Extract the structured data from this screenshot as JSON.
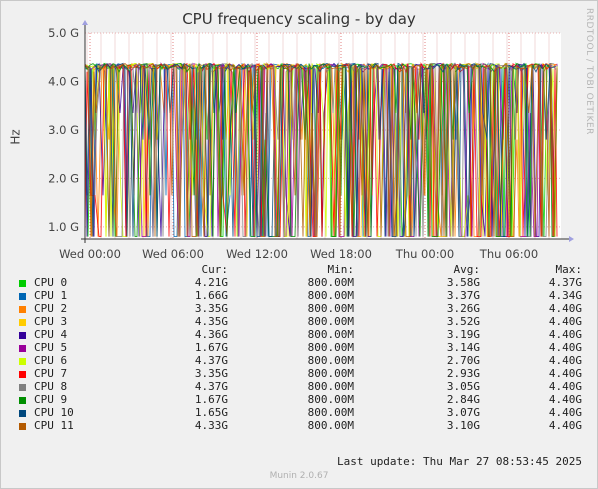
{
  "chart_data": {
    "type": "line",
    "title": "CPU frequency scaling - by day",
    "ylabel": "Hz",
    "ylim": [
      0.75,
      5.0
    ],
    "yticks": [
      "1.0 G",
      "2.0 G",
      "3.0 G",
      "4.0 G",
      "5.0 G"
    ],
    "ytick_values": [
      1.0,
      2.0,
      3.0,
      4.0,
      5.0
    ],
    "xticks": [
      "Wed 00:00",
      "Wed 06:00",
      "Wed 12:00",
      "Wed 18:00",
      "Thu 00:00",
      "Thu 06:00"
    ],
    "grid": true,
    "headers": {
      "cur": "Cur:",
      "min": "Min:",
      "avg": "Avg:",
      "max": "Max:"
    },
    "series": [
      {
        "name": "CPU 0",
        "color": "#00cc00",
        "cur": "4.21G",
        "min": "800.00M",
        "avg": "3.58G",
        "max": "4.37G"
      },
      {
        "name": "CPU 1",
        "color": "#0066b3",
        "cur": "1.66G",
        "min": "800.00M",
        "avg": "3.37G",
        "max": "4.34G"
      },
      {
        "name": "CPU 2",
        "color": "#ff8000",
        "cur": "3.35G",
        "min": "800.00M",
        "avg": "3.26G",
        "max": "4.40G"
      },
      {
        "name": "CPU 3",
        "color": "#ffcc00",
        "cur": "4.35G",
        "min": "800.00M",
        "avg": "3.52G",
        "max": "4.40G"
      },
      {
        "name": "CPU 4",
        "color": "#330099",
        "cur": "4.36G",
        "min": "800.00M",
        "avg": "3.19G",
        "max": "4.40G"
      },
      {
        "name": "CPU 5",
        "color": "#990099",
        "cur": "1.67G",
        "min": "800.00M",
        "avg": "3.14G",
        "max": "4.40G"
      },
      {
        "name": "CPU 6",
        "color": "#ccff00",
        "cur": "4.37G",
        "min": "800.00M",
        "avg": "2.70G",
        "max": "4.40G"
      },
      {
        "name": "CPU 7",
        "color": "#ff0000",
        "cur": "3.35G",
        "min": "800.00M",
        "avg": "2.93G",
        "max": "4.40G"
      },
      {
        "name": "CPU 8",
        "color": "#808080",
        "cur": "4.37G",
        "min": "800.00M",
        "avg": "3.05G",
        "max": "4.40G"
      },
      {
        "name": "CPU 9",
        "color": "#008f00",
        "cur": "1.67G",
        "min": "800.00M",
        "avg": "2.84G",
        "max": "4.40G"
      },
      {
        "name": "CPU 10",
        "color": "#00487d",
        "cur": "1.65G",
        "min": "800.00M",
        "avg": "3.07G",
        "max": "4.40G"
      },
      {
        "name": "CPU 11",
        "color": "#b35a00",
        "cur": "4.33G",
        "min": "800.00M",
        "avg": "3.10G",
        "max": "4.40G"
      }
    ]
  },
  "vendor_text": "RRDTOOL / TOBI OETIKER",
  "last_update": "Last update: Thu Mar 27 08:53:45 2025",
  "footer": "Munin 2.0.67"
}
